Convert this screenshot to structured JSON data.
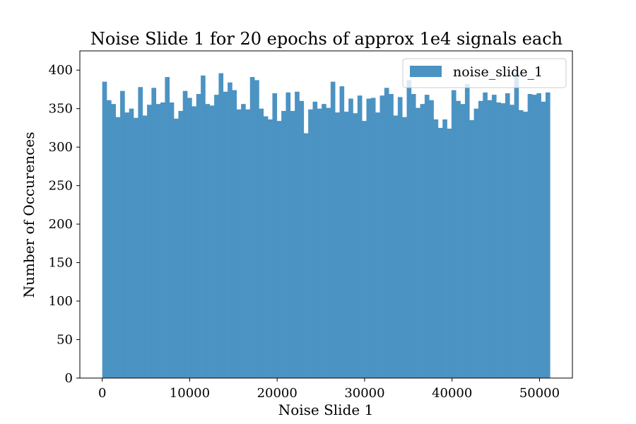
{
  "chart_data": {
    "type": "bar",
    "title": "Noise Slide 1 for 20 epochs of approx 1e4 signals each",
    "xlabel": "Noise Slide 1",
    "ylabel": "Number of Occurences",
    "xlim": [
      -2560,
      53760
    ],
    "ylim": [
      0,
      425
    ],
    "x_ticks": [
      0,
      10000,
      20000,
      30000,
      40000,
      50000
    ],
    "x_tick_labels": [
      "0",
      "10000",
      "20000",
      "30000",
      "40000",
      "50000"
    ],
    "y_ticks": [
      0,
      50,
      100,
      150,
      200,
      250,
      300,
      350,
      400
    ],
    "y_tick_labels": [
      "0",
      "50",
      "100",
      "150",
      "200",
      "250",
      "300",
      "350",
      "400"
    ],
    "bin_start": 0,
    "bin_width": 512,
    "grid": false,
    "legend_position": "top-right",
    "series": [
      {
        "name": "noise_slide_1",
        "color": "#4b93c3",
        "values": [
          385,
          361,
          356,
          339,
          373,
          345,
          350,
          338,
          378,
          341,
          355,
          377,
          356,
          358,
          391,
          358,
          337,
          347,
          373,
          364,
          353,
          369,
          393,
          356,
          354,
          368,
          396,
          372,
          384,
          374,
          349,
          356,
          349,
          391,
          387,
          350,
          340,
          336,
          370,
          334,
          347,
          371,
          347,
          372,
          360,
          318,
          349,
          359,
          350,
          356,
          351,
          385,
          345,
          379,
          346,
          363,
          344,
          367,
          334,
          363,
          364,
          345,
          367,
          377,
          369,
          341,
          365,
          339,
          387,
          369,
          351,
          356,
          368,
          361,
          336,
          325,
          336,
          324,
          374,
          360,
          356,
          382,
          335,
          350,
          360,
          371,
          361,
          368,
          358,
          357,
          370,
          355,
          397,
          348,
          346,
          369,
          368,
          370,
          359,
          371
        ]
      }
    ]
  }
}
